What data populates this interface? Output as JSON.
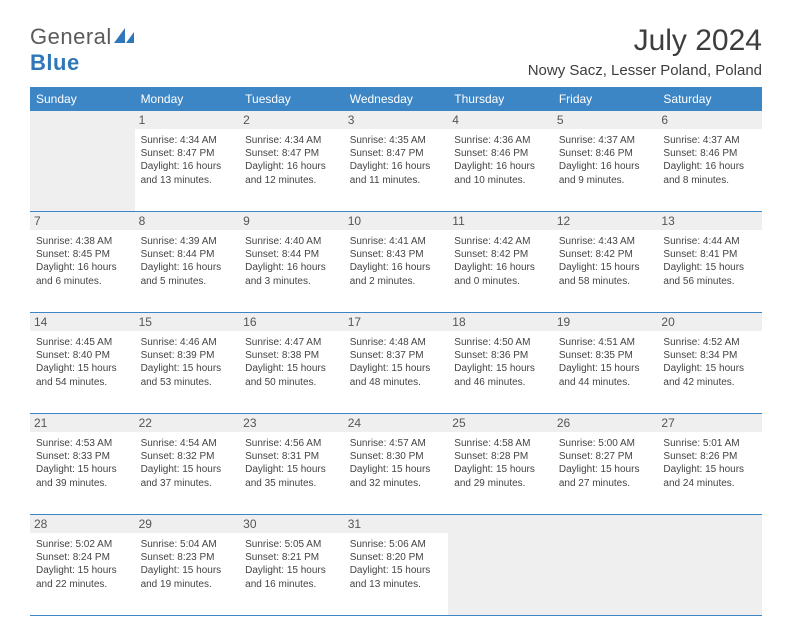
{
  "logo": {
    "line1": "General",
    "line2": "Blue"
  },
  "title": "July 2024",
  "location": "Nowy Sacz, Lesser Poland, Poland",
  "colors": {
    "header_bg": "#3d86c6",
    "header_text": "#ffffff",
    "rule": "#3d86c6",
    "muted_bg": "#efefef",
    "text": "#3d3d3d",
    "logo_blue": "#2f77b8"
  },
  "days_of_week": [
    "Sunday",
    "Monday",
    "Tuesday",
    "Wednesday",
    "Thursday",
    "Friday",
    "Saturday"
  ],
  "weeks": [
    [
      null,
      {
        "n": "1",
        "sunrise": "4:34 AM",
        "sunset": "8:47 PM",
        "daylight": "16 hours and 13 minutes."
      },
      {
        "n": "2",
        "sunrise": "4:34 AM",
        "sunset": "8:47 PM",
        "daylight": "16 hours and 12 minutes."
      },
      {
        "n": "3",
        "sunrise": "4:35 AM",
        "sunset": "8:47 PM",
        "daylight": "16 hours and 11 minutes."
      },
      {
        "n": "4",
        "sunrise": "4:36 AM",
        "sunset": "8:46 PM",
        "daylight": "16 hours and 10 minutes."
      },
      {
        "n": "5",
        "sunrise": "4:37 AM",
        "sunset": "8:46 PM",
        "daylight": "16 hours and 9 minutes."
      },
      {
        "n": "6",
        "sunrise": "4:37 AM",
        "sunset": "8:46 PM",
        "daylight": "16 hours and 8 minutes."
      }
    ],
    [
      {
        "n": "7",
        "sunrise": "4:38 AM",
        "sunset": "8:45 PM",
        "daylight": "16 hours and 6 minutes."
      },
      {
        "n": "8",
        "sunrise": "4:39 AM",
        "sunset": "8:44 PM",
        "daylight": "16 hours and 5 minutes."
      },
      {
        "n": "9",
        "sunrise": "4:40 AM",
        "sunset": "8:44 PM",
        "daylight": "16 hours and 3 minutes."
      },
      {
        "n": "10",
        "sunrise": "4:41 AM",
        "sunset": "8:43 PM",
        "daylight": "16 hours and 2 minutes."
      },
      {
        "n": "11",
        "sunrise": "4:42 AM",
        "sunset": "8:42 PM",
        "daylight": "16 hours and 0 minutes."
      },
      {
        "n": "12",
        "sunrise": "4:43 AM",
        "sunset": "8:42 PM",
        "daylight": "15 hours and 58 minutes."
      },
      {
        "n": "13",
        "sunrise": "4:44 AM",
        "sunset": "8:41 PM",
        "daylight": "15 hours and 56 minutes."
      }
    ],
    [
      {
        "n": "14",
        "sunrise": "4:45 AM",
        "sunset": "8:40 PM",
        "daylight": "15 hours and 54 minutes."
      },
      {
        "n": "15",
        "sunrise": "4:46 AM",
        "sunset": "8:39 PM",
        "daylight": "15 hours and 53 minutes."
      },
      {
        "n": "16",
        "sunrise": "4:47 AM",
        "sunset": "8:38 PM",
        "daylight": "15 hours and 50 minutes."
      },
      {
        "n": "17",
        "sunrise": "4:48 AM",
        "sunset": "8:37 PM",
        "daylight": "15 hours and 48 minutes."
      },
      {
        "n": "18",
        "sunrise": "4:50 AM",
        "sunset": "8:36 PM",
        "daylight": "15 hours and 46 minutes."
      },
      {
        "n": "19",
        "sunrise": "4:51 AM",
        "sunset": "8:35 PM",
        "daylight": "15 hours and 44 minutes."
      },
      {
        "n": "20",
        "sunrise": "4:52 AM",
        "sunset": "8:34 PM",
        "daylight": "15 hours and 42 minutes."
      }
    ],
    [
      {
        "n": "21",
        "sunrise": "4:53 AM",
        "sunset": "8:33 PM",
        "daylight": "15 hours and 39 minutes."
      },
      {
        "n": "22",
        "sunrise": "4:54 AM",
        "sunset": "8:32 PM",
        "daylight": "15 hours and 37 minutes."
      },
      {
        "n": "23",
        "sunrise": "4:56 AM",
        "sunset": "8:31 PM",
        "daylight": "15 hours and 35 minutes."
      },
      {
        "n": "24",
        "sunrise": "4:57 AM",
        "sunset": "8:30 PM",
        "daylight": "15 hours and 32 minutes."
      },
      {
        "n": "25",
        "sunrise": "4:58 AM",
        "sunset": "8:28 PM",
        "daylight": "15 hours and 29 minutes."
      },
      {
        "n": "26",
        "sunrise": "5:00 AM",
        "sunset": "8:27 PM",
        "daylight": "15 hours and 27 minutes."
      },
      {
        "n": "27",
        "sunrise": "5:01 AM",
        "sunset": "8:26 PM",
        "daylight": "15 hours and 24 minutes."
      }
    ],
    [
      {
        "n": "28",
        "sunrise": "5:02 AM",
        "sunset": "8:24 PM",
        "daylight": "15 hours and 22 minutes."
      },
      {
        "n": "29",
        "sunrise": "5:04 AM",
        "sunset": "8:23 PM",
        "daylight": "15 hours and 19 minutes."
      },
      {
        "n": "30",
        "sunrise": "5:05 AM",
        "sunset": "8:21 PM",
        "daylight": "15 hours and 16 minutes."
      },
      {
        "n": "31",
        "sunrise": "5:06 AM",
        "sunset": "8:20 PM",
        "daylight": "15 hours and 13 minutes."
      },
      null,
      null,
      null
    ]
  ],
  "labels": {
    "sunrise_prefix": "Sunrise: ",
    "sunset_prefix": "Sunset: ",
    "daylight_prefix": "Daylight: "
  }
}
